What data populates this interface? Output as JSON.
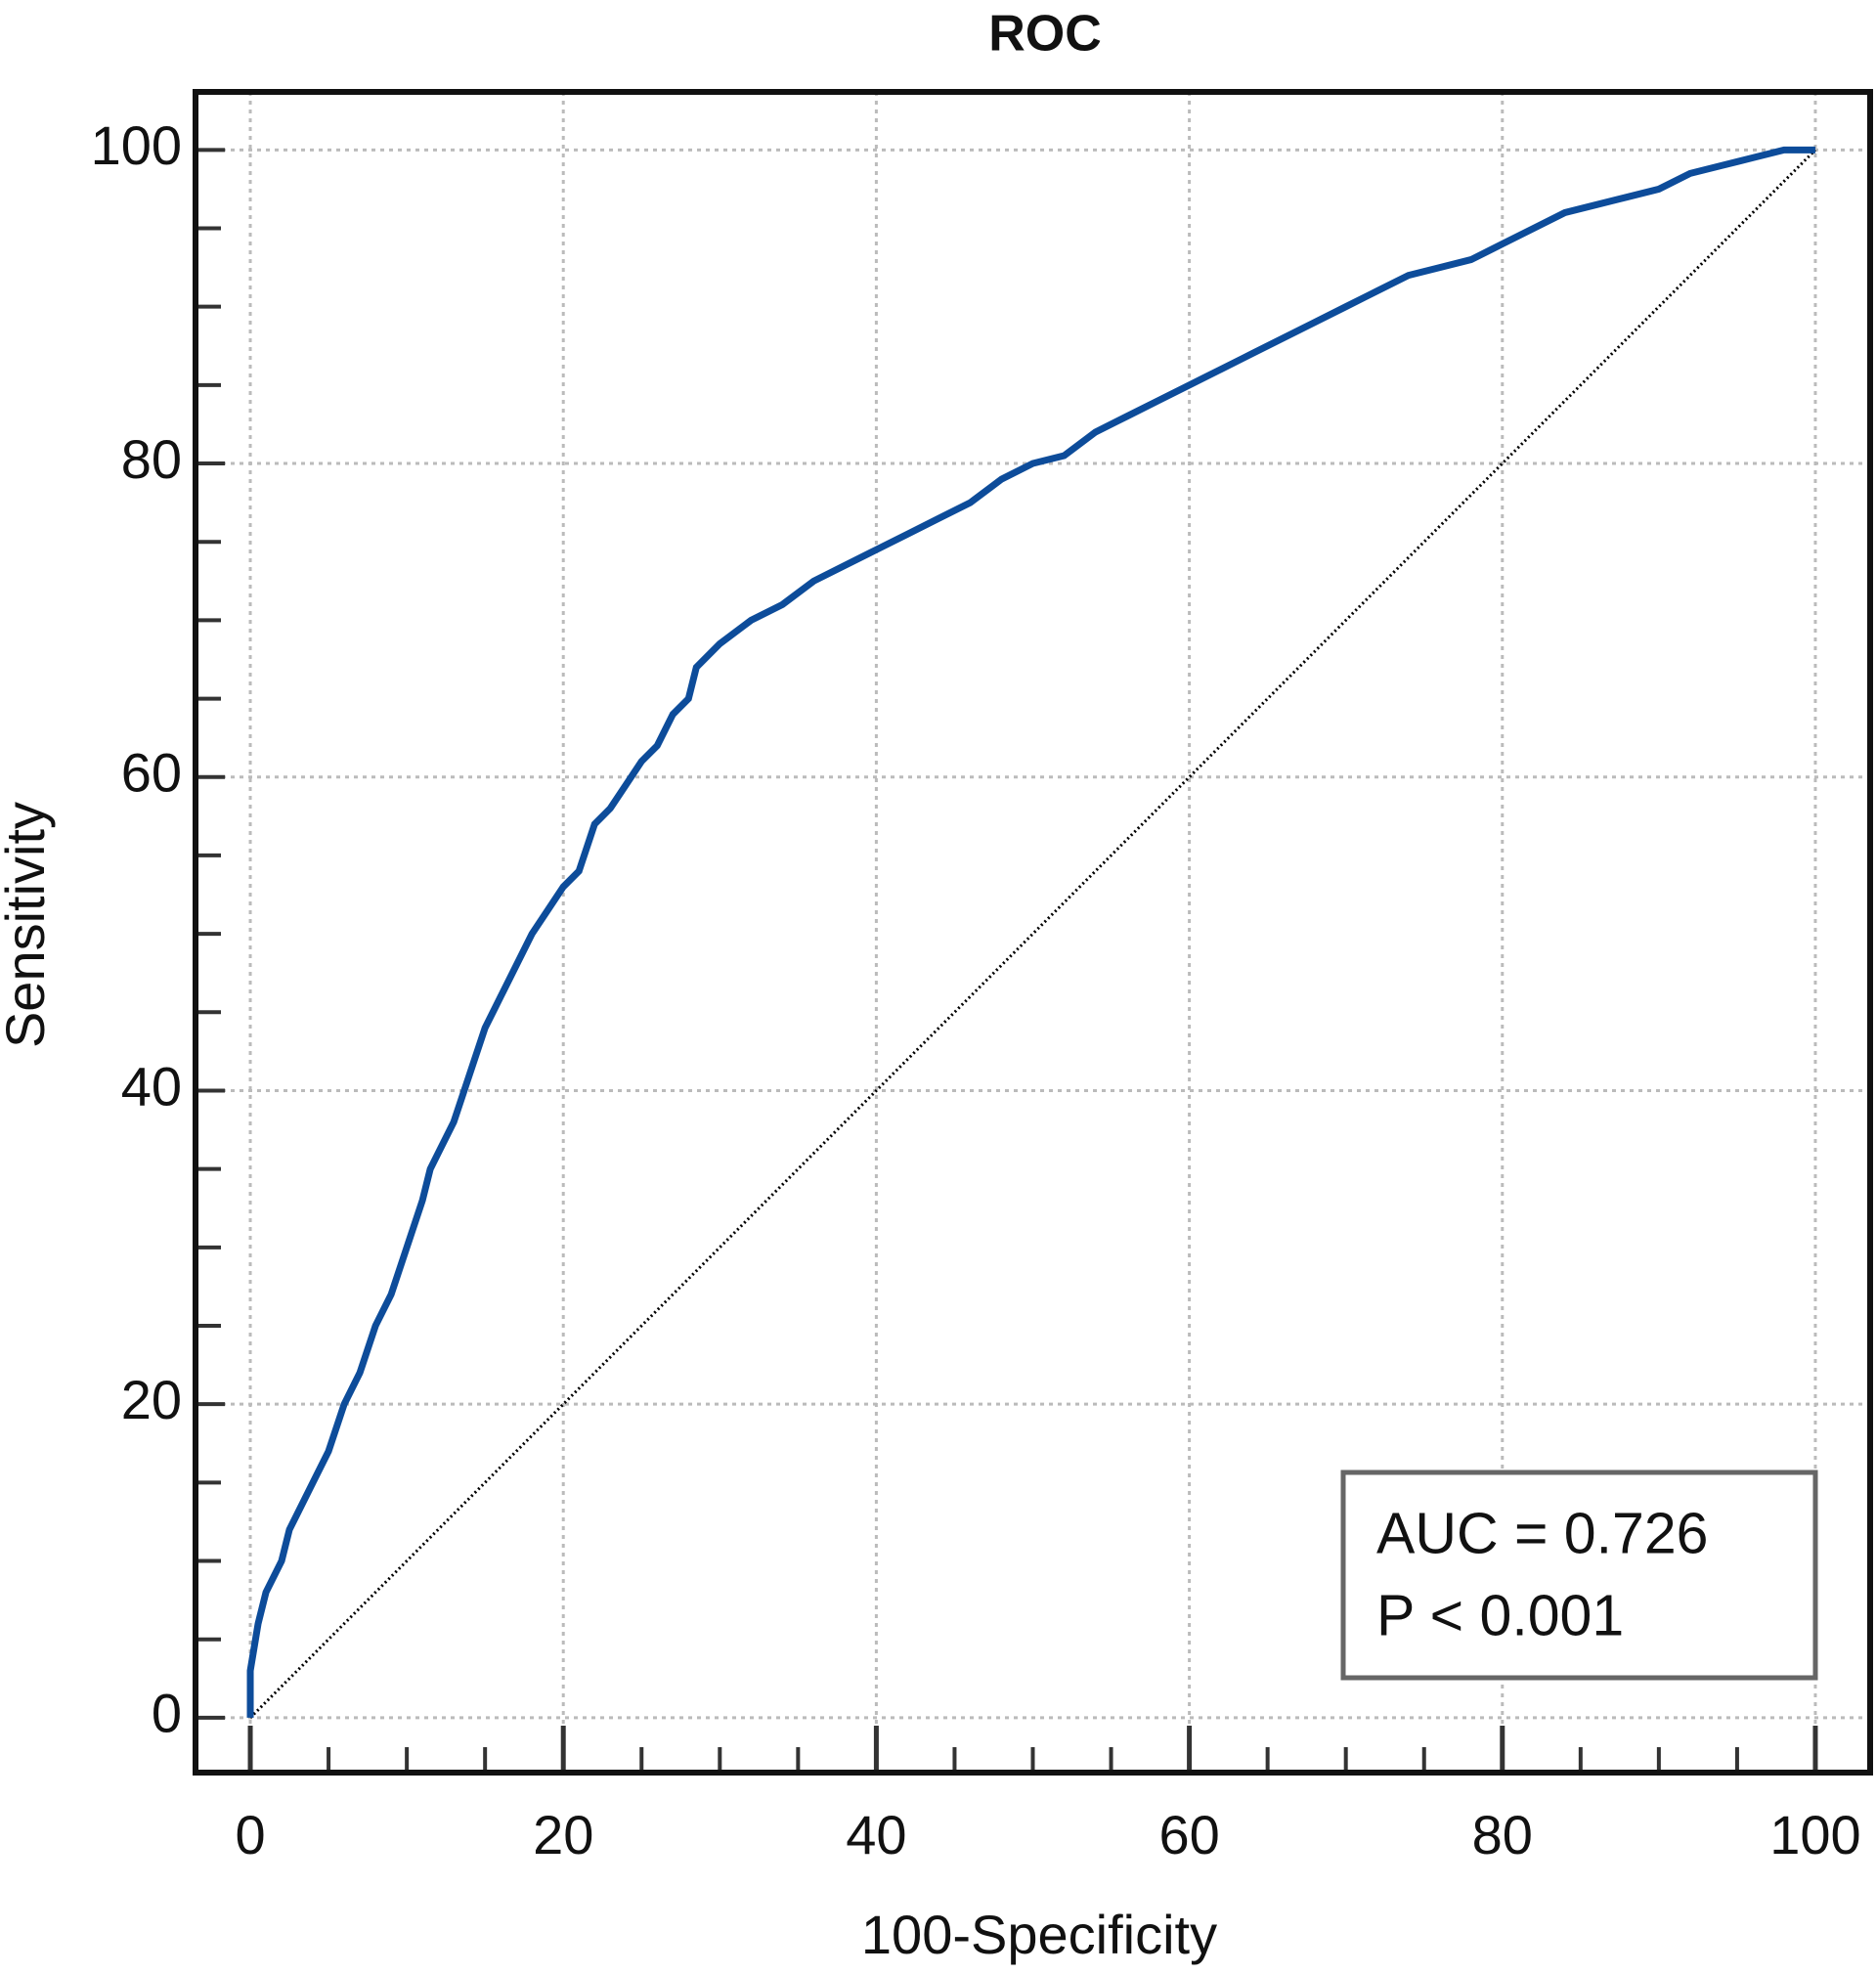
{
  "chart_data": {
    "type": "line",
    "title": "ROC",
    "xlabel": "100-Specificity",
    "ylabel": "Sensitivity",
    "xlim": [
      -3.5,
      103.5
    ],
    "ylim": [
      -3.5,
      103.7
    ],
    "xticks": [
      0,
      20,
      40,
      60,
      80,
      100
    ],
    "yticks": [
      0,
      20,
      40,
      60,
      80,
      100
    ],
    "xminorticks": [
      5,
      10,
      15,
      25,
      30,
      35,
      45,
      50,
      55,
      65,
      70,
      75,
      85,
      90,
      95
    ],
    "yminorticks": [
      5,
      10,
      15,
      25,
      30,
      35,
      45,
      50,
      55,
      65,
      70,
      75,
      85,
      90,
      95
    ],
    "grid": true,
    "series": [
      {
        "color": "#0d4c9a",
        "x": [
          0,
          0,
          0.5,
          1,
          2,
          2.5,
          3,
          4,
          5,
          6,
          7,
          8,
          9,
          10,
          11,
          11.5,
          12,
          13,
          14,
          15,
          16,
          17,
          18,
          19,
          20,
          21,
          22,
          23,
          24,
          25,
          26,
          27,
          28,
          28.5,
          30,
          32,
          34,
          36,
          38,
          40,
          42,
          44,
          46,
          48,
          50,
          52,
          54,
          56,
          58,
          60,
          62,
          64,
          66,
          68,
          70,
          72,
          74,
          76,
          78,
          80,
          82,
          84,
          86,
          88,
          90,
          92,
          94,
          96,
          98,
          100
        ],
        "values": [
          0,
          3,
          6,
          8,
          10,
          12,
          13,
          15,
          17,
          20,
          22,
          25,
          27,
          30,
          33,
          35,
          36,
          38,
          41,
          44,
          46,
          48,
          50,
          51.5,
          53,
          54,
          57,
          58,
          59.5,
          61,
          62,
          64,
          65,
          67,
          68.5,
          70,
          71,
          72.5,
          73.5,
          74.5,
          75.5,
          76.5,
          77.5,
          79,
          80,
          80.5,
          82,
          83,
          84,
          85,
          86,
          87,
          88,
          89,
          90,
          91,
          92,
          92.5,
          93,
          94,
          95,
          96,
          96.5,
          97,
          97.5,
          98.5,
          99,
          99.5,
          100,
          100
        ]
      },
      {
        "color": "#000000",
        "dotted": true,
        "x": [
          0,
          100
        ],
        "values": [
          0,
          100
        ]
      }
    ],
    "annotations": [
      "AUC = 0.726",
      "P < 0.001"
    ]
  }
}
